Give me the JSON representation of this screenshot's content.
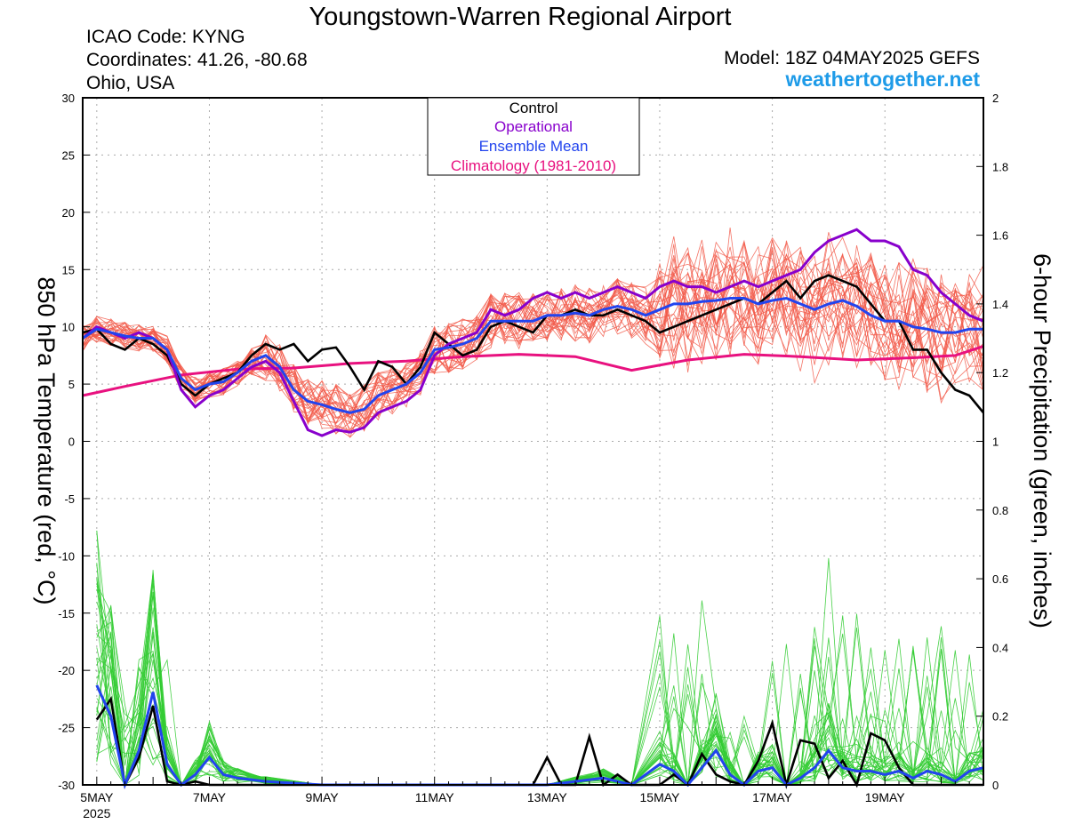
{
  "header": {
    "title": "Youngstown-Warren Regional Airport",
    "icao": "ICAO Code: KYNG",
    "coords": "Coordinates: 41.26, -80.68",
    "region": "Ohio, USA",
    "model": "Model: 18Z 04MAY2025 GEFS",
    "site": "weathertogether.net"
  },
  "colors": {
    "control": "#000000",
    "operational": "#8800cc",
    "mean": "#2244ee",
    "climo": "#e8117f",
    "temp_members": "#f25a4a",
    "precip_members": "#33cc33",
    "site": "#1e9be8"
  },
  "chart_data": {
    "type": "line",
    "ylabel_left": "850 hPa Temperature (red, °C)",
    "ylabel_right": "6-hour Precipitation (green, inches)",
    "ylim_left": [
      -30,
      30
    ],
    "ylim_right": [
      0,
      2
    ],
    "yticks_left": [
      "30",
      "25",
      "20",
      "15",
      "10",
      "5",
      "0",
      "-5",
      "-10",
      "-15",
      "-20",
      "-25",
      "-30"
    ],
    "yticks_right": [
      "2",
      "1.8",
      "1.6",
      "1.4",
      "1.2",
      "1",
      "0.8",
      "0.6",
      "0.4",
      "0.2",
      "0"
    ],
    "xlim_days": [
      4.75,
      20.75
    ],
    "xticks": [
      {
        "day": 5,
        "label": "5MAY",
        "sub": "2025"
      },
      {
        "day": 7,
        "label": "7MAY"
      },
      {
        "day": 9,
        "label": "9MAY"
      },
      {
        "day": 11,
        "label": "11MAY"
      },
      {
        "day": 13,
        "label": "13MAY"
      },
      {
        "day": 15,
        "label": "15MAY"
      },
      {
        "day": 17,
        "label": "17MAY"
      },
      {
        "day": 19,
        "label": "19MAY"
      }
    ],
    "legend": [
      "Control",
      "Operational",
      "Ensemble Mean",
      "Climatology (1981-2010)"
    ],
    "temperature": {
      "climatology": {
        "x": [
          4.75,
          5.5,
          6.5,
          7.5,
          8.5,
          9.5,
          10.5,
          11.5,
          12.5,
          13.5,
          14.5,
          15.5,
          16.5,
          17.5,
          18.5,
          19.5,
          20.25,
          20.75
        ],
        "y": [
          4,
          4.8,
          5.8,
          6.3,
          6.4,
          6.8,
          7.0,
          7.4,
          7.6,
          7.4,
          6.2,
          7.1,
          7.6,
          7.4,
          7.1,
          7.3,
          7.5,
          8.3
        ]
      },
      "control": {
        "x": [
          4.75,
          5.0,
          5.25,
          5.5,
          5.75,
          6.0,
          6.25,
          6.5,
          6.75,
          7.0,
          7.25,
          7.5,
          7.75,
          8.0,
          8.25,
          8.5,
          8.75,
          9.0,
          9.25,
          9.5,
          9.75,
          10.0,
          10.25,
          10.5,
          10.75,
          11.0,
          11.25,
          11.5,
          11.75,
          12.0,
          12.25,
          12.5,
          12.75,
          13.0,
          13.25,
          13.5,
          13.75,
          14.0,
          14.25,
          14.5,
          14.75,
          15.0,
          15.25,
          15.5,
          15.75,
          16.0,
          16.25,
          16.5,
          16.75,
          17.0,
          17.25,
          17.5,
          17.75,
          18.0,
          18.25,
          18.5,
          18.75,
          19.0,
          19.25,
          19.5,
          19.75,
          20.0,
          20.25,
          20.5,
          20.75
        ],
        "y": [
          9.5,
          9.8,
          8.5,
          8.0,
          9.0,
          8.5,
          7.5,
          5.0,
          4.0,
          5.0,
          5.5,
          6.0,
          7.5,
          8.5,
          8.0,
          8.5,
          7.0,
          8.0,
          8.2,
          6.5,
          4.5,
          7.0,
          6.5,
          5.0,
          6.5,
          9.5,
          8.5,
          7.5,
          8.0,
          10.0,
          10.5,
          10.0,
          9.5,
          11.0,
          11.0,
          11.5,
          11.0,
          11.0,
          11.5,
          11.0,
          10.5,
          9.5,
          10.0,
          10.5,
          11.0,
          11.5,
          12.0,
          12.5,
          12.0,
          13.0,
          14.0,
          12.5,
          14.0,
          14.5,
          14.0,
          13.5,
          12.0,
          10.5,
          10.5,
          8.0,
          8.0,
          6.0,
          4.5,
          4.0,
          2.5
        ]
      },
      "operational": {
        "x": [
          4.75,
          5.0,
          5.25,
          5.5,
          5.75,
          6.0,
          6.25,
          6.5,
          6.75,
          7.0,
          7.25,
          7.5,
          7.75,
          8.0,
          8.25,
          8.5,
          8.75,
          9.0,
          9.25,
          9.5,
          9.75,
          10.0,
          10.25,
          10.5,
          10.75,
          11.0,
          11.25,
          11.5,
          11.75,
          12.0,
          12.25,
          12.5,
          12.75,
          13.0,
          13.25,
          13.5,
          13.75,
          14.0,
          14.25,
          14.5,
          14.75,
          15.0,
          15.25,
          15.5,
          15.75,
          16.0,
          16.25,
          16.5,
          16.75,
          17.0,
          17.25,
          17.5,
          17.75,
          18.0,
          18.25,
          18.5,
          18.75,
          19.0,
          19.25,
          19.5,
          19.75,
          20.0,
          20.25,
          20.5,
          20.75
        ],
        "y": [
          9.0,
          10.0,
          9.5,
          9.0,
          9.5,
          9.0,
          8.0,
          4.5,
          3.0,
          4.0,
          4.5,
          5.5,
          6.5,
          7.0,
          6.0,
          3.5,
          1.0,
          0.5,
          1.0,
          0.8,
          1.2,
          2.5,
          3.0,
          3.5,
          4.5,
          7.5,
          8.5,
          9.0,
          9.5,
          11.5,
          11.0,
          11.5,
          12.5,
          13.0,
          12.5,
          13.0,
          12.5,
          13.0,
          13.5,
          13.0,
          12.5,
          13.5,
          14.0,
          13.5,
          13.5,
          13.0,
          13.5,
          14.0,
          13.5,
          14.0,
          14.5,
          15.0,
          16.5,
          17.5,
          18.0,
          18.5,
          17.5,
          17.5,
          17.0,
          15.0,
          14.5,
          13.0,
          12.0,
          11.0,
          10.5
        ]
      },
      "mean": {
        "x": [
          4.75,
          5.0,
          5.25,
          5.5,
          5.75,
          6.0,
          6.25,
          6.5,
          6.75,
          7.0,
          7.25,
          7.5,
          7.75,
          8.0,
          8.25,
          8.5,
          8.75,
          9.0,
          9.25,
          9.5,
          9.75,
          10.0,
          10.25,
          10.5,
          10.75,
          11.0,
          11.25,
          11.5,
          11.75,
          12.0,
          12.25,
          12.5,
          12.75,
          13.0,
          13.25,
          13.5,
          13.75,
          14.0,
          14.25,
          14.5,
          14.75,
          15.0,
          15.25,
          15.5,
          15.75,
          16.0,
          16.25,
          16.5,
          16.75,
          17.0,
          17.25,
          17.5,
          17.75,
          18.0,
          18.25,
          18.5,
          18.75,
          19.0,
          19.25,
          19.5,
          19.75,
          20.0,
          20.25,
          20.5,
          20.75
        ],
        "y": [
          9.0,
          9.8,
          9.5,
          9.2,
          9.0,
          9.0,
          8.0,
          5.5,
          4.5,
          5.0,
          5.2,
          6.0,
          7.0,
          7.5,
          6.5,
          4.5,
          3.5,
          3.2,
          2.8,
          2.5,
          2.8,
          4.0,
          4.5,
          5.0,
          6.0,
          8.0,
          8.2,
          8.5,
          9.0,
          10.5,
          10.5,
          10.5,
          10.5,
          11.0,
          11.0,
          11.2,
          11.0,
          11.5,
          11.8,
          11.5,
          11.0,
          11.5,
          12.0,
          12.0,
          12.2,
          12.3,
          12.5,
          12.5,
          12.0,
          12.3,
          12.5,
          12.0,
          11.5,
          12.0,
          12.3,
          11.8,
          11.0,
          10.5,
          10.5,
          10.0,
          9.8,
          9.5,
          9.5,
          9.8,
          9.8
        ]
      }
    },
    "precipitation": {
      "control": {
        "x": [
          5.0,
          5.25,
          5.5,
          5.75,
          6.0,
          6.25,
          6.5,
          6.75,
          7.0,
          7.5,
          8.0,
          10.0,
          12.0,
          12.75,
          13.0,
          13.25,
          13.5,
          13.75,
          14.0,
          14.25,
          14.5,
          14.75,
          15.0,
          15.25,
          15.5,
          15.75,
          16.0,
          16.25,
          16.5,
          16.75,
          17.0,
          17.25,
          17.5,
          17.75,
          18.0,
          18.25,
          18.5,
          18.75,
          19.0,
          19.25,
          19.5,
          19.75,
          20.0,
          20.25,
          20.5,
          20.75
        ],
        "y": [
          0.19,
          0.25,
          0.0,
          0.08,
          0.23,
          0.01,
          0.0,
          0.01,
          0.0,
          0.0,
          0.0,
          0.0,
          0.0,
          0.0,
          0.08,
          0.0,
          0.0,
          0.14,
          0.0,
          0.03,
          0.0,
          0.0,
          0.0,
          0.03,
          0.0,
          0.09,
          0.03,
          0.01,
          0.0,
          0.07,
          0.18,
          0.0,
          0.13,
          0.12,
          0.02,
          0.07,
          0.0,
          0.15,
          0.13,
          0.05,
          0.0,
          0.0,
          0.0,
          0.0,
          0.0,
          0.0
        ]
      },
      "mean": {
        "x": [
          5.0,
          5.25,
          5.5,
          5.75,
          6.0,
          6.25,
          6.5,
          6.75,
          7.0,
          7.25,
          7.5,
          8.0,
          9.0,
          10.0,
          11.0,
          12.0,
          13.0,
          13.5,
          14.0,
          14.5,
          15.0,
          15.25,
          15.5,
          15.75,
          16.0,
          16.25,
          16.5,
          16.75,
          17.0,
          17.25,
          17.5,
          17.75,
          18.0,
          18.25,
          18.5,
          18.75,
          19.0,
          19.25,
          19.5,
          19.75,
          20.0,
          20.25,
          20.5,
          20.75
        ],
        "y": [
          0.29,
          0.2,
          0.0,
          0.1,
          0.27,
          0.06,
          0.0,
          0.03,
          0.08,
          0.03,
          0.02,
          0.01,
          0.0,
          0.0,
          0.0,
          0.0,
          0.0,
          0.01,
          0.02,
          0.0,
          0.06,
          0.04,
          0.0,
          0.05,
          0.1,
          0.03,
          0.0,
          0.04,
          0.05,
          0.0,
          0.02,
          0.05,
          0.1,
          0.05,
          0.04,
          0.04,
          0.03,
          0.04,
          0.02,
          0.04,
          0.03,
          0.01,
          0.04,
          0.05
        ]
      }
    }
  }
}
